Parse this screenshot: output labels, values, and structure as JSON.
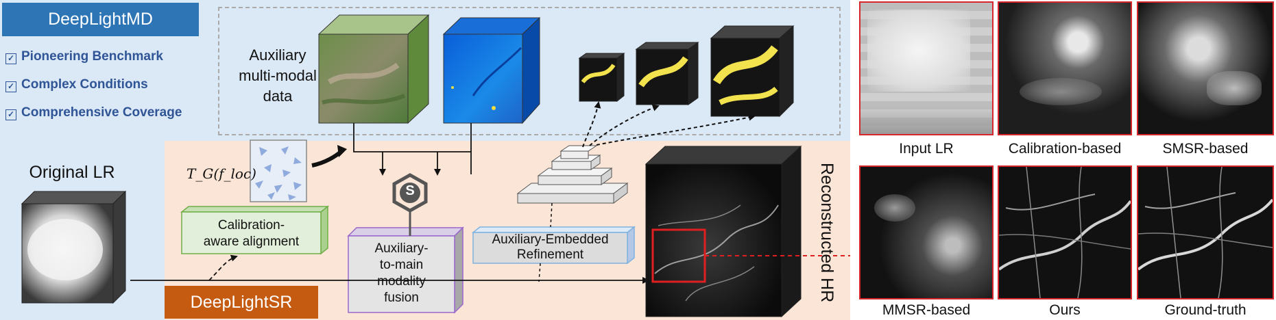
{
  "title_badge": "DeepLightMD",
  "features": [
    "Pioneering Benchmark",
    "Complex Conditions",
    "Comprehensive Coverage"
  ],
  "aux_data_label": [
    "Auxiliary",
    "multi-modal",
    "data"
  ],
  "original_lr_label": "Original LR",
  "transform_formula": "T_G(f_loc)",
  "calibration_label": [
    "Calibration-",
    "aware alignment"
  ],
  "fusion_label": [
    "Auxiliary-",
    "to-main",
    "modality",
    "fusion"
  ],
  "fusion_symbol": "S",
  "refinement_label": [
    "Auxiliary-Embedded",
    "Refinement"
  ],
  "sr_badge": "DeepLightSR",
  "reconstructed_label": "Reconstructed HR",
  "comparisons": [
    "Input LR",
    "Calibration-based",
    "SMSR-based",
    "MMSR-based",
    "Ours",
    "Ground-truth"
  ],
  "colors": {
    "badge_blue": "#2e75b6",
    "badge_orange": "#c55a11",
    "panel_blue": "#dbe8f5",
    "panel_orange": "#fbe5d6",
    "feature_text": "#2f5597",
    "calib_border": "#70ad47",
    "fusion_border": "#9966cc",
    "refine_border": "#7fb2e0",
    "highlight": "#e02020"
  }
}
